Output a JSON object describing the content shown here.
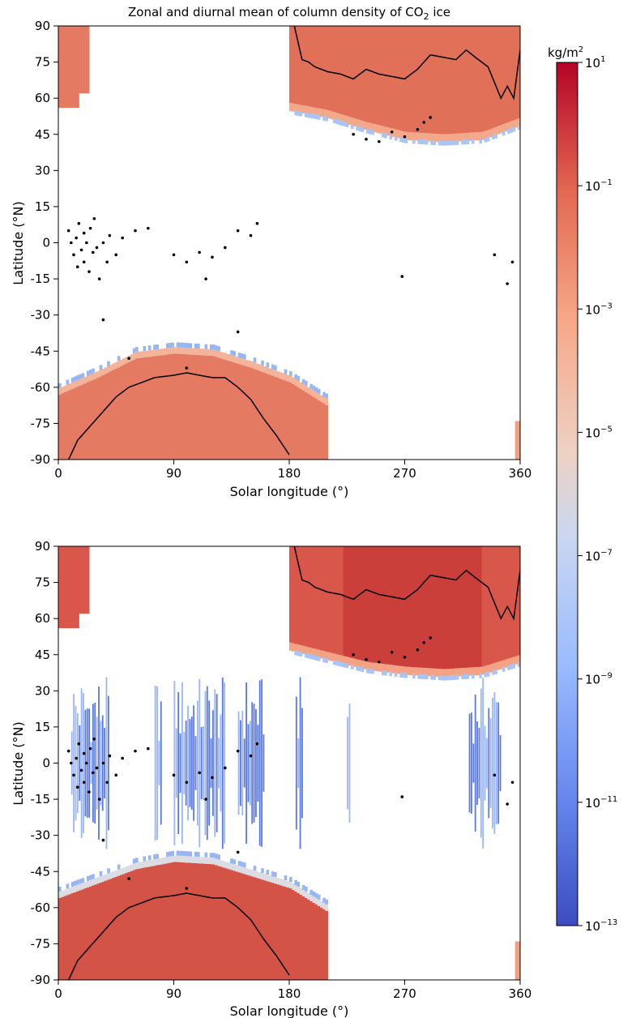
{
  "chart_data": [
    {
      "type": "heatmap",
      "title": "Zonal and diurnal mean of column density of CO",
      "title_subscript": "2",
      "title_suffix": " ice",
      "xlabel": "Solar longitude (°)",
      "ylabel": "Latitude (°N)",
      "xlim": [
        0,
        360
      ],
      "ylim": [
        -90,
        90
      ],
      "xticks": [
        "0",
        "90",
        "180",
        "270",
        "360"
      ],
      "yticks": [
        "90",
        "75",
        "60",
        "45",
        "30",
        "15",
        "0",
        "-15",
        "-30",
        "-45",
        "-60",
        "-75",
        "-90"
      ],
      "color_scale": "log",
      "north_cap_lat_edge_by_ls": [
        [
          180,
          58
        ],
        [
          210,
          55
        ],
        [
          240,
          50
        ],
        [
          270,
          46
        ],
        [
          300,
          45
        ],
        [
          330,
          46
        ],
        [
          360,
          52
        ]
      ],
      "south_cap_lat_edge_by_ls": [
        [
          0,
          -63
        ],
        [
          30,
          -56
        ],
        [
          60,
          -48
        ],
        [
          90,
          -46
        ],
        [
          120,
          -47
        ],
        [
          150,
          -52
        ],
        [
          180,
          -58
        ],
        [
          210,
          -68
        ]
      ],
      "north_cap_boundary_line": [
        [
          184,
          90
        ],
        [
          190,
          76
        ],
        [
          195,
          75
        ],
        [
          200,
          73
        ],
        [
          210,
          71
        ],
        [
          220,
          70
        ],
        [
          230,
          68
        ],
        [
          240,
          72
        ],
        [
          250,
          70
        ],
        [
          260,
          69
        ],
        [
          270,
          68
        ],
        [
          280,
          72
        ],
        [
          290,
          78
        ],
        [
          300,
          77
        ],
        [
          310,
          76
        ],
        [
          318,
          80
        ],
        [
          325,
          77
        ],
        [
          335,
          73
        ],
        [
          345,
          60
        ],
        [
          350,
          65
        ],
        [
          355,
          60
        ],
        [
          360,
          80
        ],
        [
          363,
          90
        ]
      ],
      "south_cap_boundary_line": [
        [
          8,
          -90
        ],
        [
          15,
          -82
        ],
        [
          25,
          -76
        ],
        [
          35,
          -70
        ],
        [
          45,
          -64
        ],
        [
          55,
          -60
        ],
        [
          65,
          -58
        ],
        [
          75,
          -56
        ],
        [
          90,
          -55
        ],
        [
          100,
          -54
        ],
        [
          110,
          -55
        ],
        [
          120,
          -56
        ],
        [
          130,
          -56
        ],
        [
          140,
          -60
        ],
        [
          150,
          -65
        ],
        [
          160,
          -73
        ],
        [
          170,
          -80
        ],
        [
          180,
          -88
        ]
      ],
      "observation_points_approx": [
        [
          8,
          5
        ],
        [
          10,
          0
        ],
        [
          12,
          -5
        ],
        [
          14,
          2
        ],
        [
          15,
          -10
        ],
        [
          16,
          8
        ],
        [
          18,
          -3
        ],
        [
          20,
          4
        ],
        [
          20,
          -8
        ],
        [
          22,
          0
        ],
        [
          24,
          -12
        ],
        [
          25,
          6
        ],
        [
          27,
          -4
        ],
        [
          28,
          10
        ],
        [
          30,
          -2
        ],
        [
          32,
          -15
        ],
        [
          35,
          0
        ],
        [
          38,
          -8
        ],
        [
          40,
          3
        ],
        [
          45,
          -5
        ],
        [
          50,
          2
        ],
        [
          60,
          5
        ],
        [
          70,
          6
        ],
        [
          90,
          -5
        ],
        [
          100,
          -8
        ],
        [
          110,
          -4
        ],
        [
          115,
          -15
        ],
        [
          120,
          -6
        ],
        [
          130,
          -2
        ],
        [
          140,
          5
        ],
        [
          150,
          3
        ],
        [
          155,
          8
        ],
        [
          230,
          45
        ],
        [
          240,
          43
        ],
        [
          250,
          42
        ],
        [
          260,
          46
        ],
        [
          270,
          44
        ],
        [
          280,
          47
        ],
        [
          285,
          50
        ],
        [
          290,
          52
        ],
        [
          340,
          -5
        ],
        [
          350,
          -17
        ],
        [
          354,
          -8
        ],
        [
          268,
          -14
        ],
        [
          35,
          -32
        ],
        [
          140,
          -37
        ],
        [
          55,
          -48
        ],
        [
          100,
          -52
        ]
      ]
    },
    {
      "type": "heatmap",
      "xlabel": "Solar longitude (°)",
      "ylabel": "Latitude (°N)",
      "xlim": [
        0,
        360
      ],
      "ylim": [
        -90,
        90
      ],
      "xticks": [
        "0",
        "90",
        "180",
        "270",
        "360"
      ],
      "yticks": [
        "90",
        "75",
        "60",
        "45",
        "30",
        "15",
        "0",
        "-15",
        "-30",
        "-45",
        "-60",
        "-75",
        "-90"
      ],
      "color_scale": "log",
      "north_cap_lat_edge_by_ls": [
        [
          180,
          50
        ],
        [
          210,
          46
        ],
        [
          240,
          42
        ],
        [
          270,
          40
        ],
        [
          300,
          39
        ],
        [
          330,
          40
        ],
        [
          360,
          45
        ]
      ],
      "south_cap_lat_edge_by_ls": [
        [
          0,
          -56
        ],
        [
          30,
          -50
        ],
        [
          60,
          -44
        ],
        [
          90,
          -41
        ],
        [
          120,
          -42
        ],
        [
          150,
          -47
        ],
        [
          180,
          -52
        ],
        [
          210,
          -62
        ]
      ],
      "equatorial_low_ice_patches_ls": [
        [
          10,
          40
        ],
        [
          75,
          80
        ],
        [
          90,
          130
        ],
        [
          140,
          160
        ],
        [
          185,
          190
        ],
        [
          225,
          227
        ],
        [
          320,
          345
        ]
      ],
      "north_cap_boundary_line": [
        [
          184,
          90
        ],
        [
          190,
          76
        ],
        [
          195,
          75
        ],
        [
          200,
          73
        ],
        [
          210,
          71
        ],
        [
          220,
          70
        ],
        [
          230,
          68
        ],
        [
          240,
          72
        ],
        [
          250,
          70
        ],
        [
          260,
          69
        ],
        [
          270,
          68
        ],
        [
          280,
          72
        ],
        [
          290,
          78
        ],
        [
          300,
          77
        ],
        [
          310,
          76
        ],
        [
          318,
          80
        ],
        [
          325,
          77
        ],
        [
          335,
          73
        ],
        [
          345,
          60
        ],
        [
          350,
          65
        ],
        [
          355,
          60
        ],
        [
          360,
          80
        ],
        [
          363,
          90
        ]
      ],
      "south_cap_boundary_line": [
        [
          8,
          -90
        ],
        [
          15,
          -82
        ],
        [
          25,
          -76
        ],
        [
          35,
          -70
        ],
        [
          45,
          -64
        ],
        [
          55,
          -60
        ],
        [
          65,
          -58
        ],
        [
          75,
          -56
        ],
        [
          90,
          -55
        ],
        [
          100,
          -54
        ],
        [
          110,
          -55
        ],
        [
          120,
          -56
        ],
        [
          130,
          -56
        ],
        [
          140,
          -60
        ],
        [
          150,
          -65
        ],
        [
          160,
          -73
        ],
        [
          170,
          -80
        ],
        [
          180,
          -88
        ]
      ]
    }
  ],
  "colorbar": {
    "unit": "kg/m",
    "unit_sup": "2",
    "scale": "log",
    "range_exponents": [
      -13,
      1
    ],
    "tick_base": "10",
    "tick_exponents": [
      "1",
      "−1",
      "−3",
      "−5",
      "−7",
      "−9",
      "−11",
      "−13"
    ],
    "colormap": "coolwarm"
  }
}
